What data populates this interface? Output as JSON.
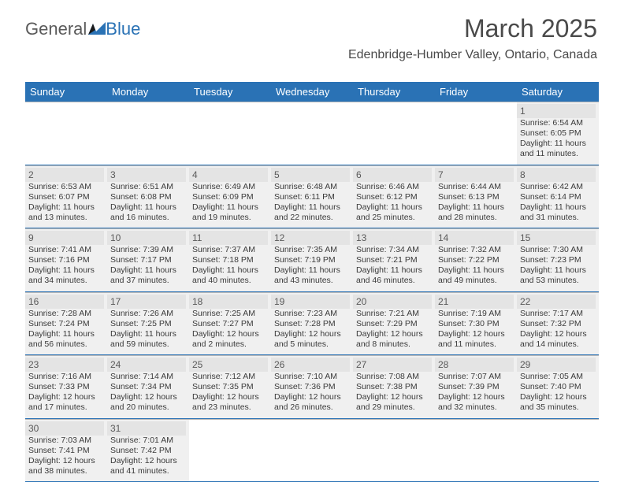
{
  "logo": {
    "part1": "General",
    "part2": "Blue"
  },
  "title": "March 2025",
  "location": "Edenbridge-Humber Valley, Ontario, Canada",
  "colors": {
    "header_bg": "#2a72b5",
    "header_text": "#ffffff",
    "daynum_bg": "#e4e4e4",
    "cell_bg": "#f0f0f0",
    "row_border": "#2a72b5",
    "cell_border": "#b8b8b8",
    "title_color": "#4a4a4a",
    "logo_gray": "#5a5a5a",
    "logo_blue": "#2a72b5"
  },
  "font": {
    "family": "Arial",
    "title_size": 32,
    "location_size": 16,
    "header_size": 13,
    "daynum_size": 12,
    "info_size": 10.5
  },
  "days_of_week": [
    "Sunday",
    "Monday",
    "Tuesday",
    "Wednesday",
    "Thursday",
    "Friday",
    "Saturday"
  ],
  "weeks": [
    [
      {
        "n": "",
        "sr": "",
        "ss": "",
        "dl": ""
      },
      {
        "n": "",
        "sr": "",
        "ss": "",
        "dl": ""
      },
      {
        "n": "",
        "sr": "",
        "ss": "",
        "dl": ""
      },
      {
        "n": "",
        "sr": "",
        "ss": "",
        "dl": ""
      },
      {
        "n": "",
        "sr": "",
        "ss": "",
        "dl": ""
      },
      {
        "n": "",
        "sr": "",
        "ss": "",
        "dl": ""
      },
      {
        "n": "1",
        "sr": "Sunrise: 6:54 AM",
        "ss": "Sunset: 6:05 PM",
        "dl": "Daylight: 11 hours and 11 minutes."
      }
    ],
    [
      {
        "n": "2",
        "sr": "Sunrise: 6:53 AM",
        "ss": "Sunset: 6:07 PM",
        "dl": "Daylight: 11 hours and 13 minutes."
      },
      {
        "n": "3",
        "sr": "Sunrise: 6:51 AM",
        "ss": "Sunset: 6:08 PM",
        "dl": "Daylight: 11 hours and 16 minutes."
      },
      {
        "n": "4",
        "sr": "Sunrise: 6:49 AM",
        "ss": "Sunset: 6:09 PM",
        "dl": "Daylight: 11 hours and 19 minutes."
      },
      {
        "n": "5",
        "sr": "Sunrise: 6:48 AM",
        "ss": "Sunset: 6:11 PM",
        "dl": "Daylight: 11 hours and 22 minutes."
      },
      {
        "n": "6",
        "sr": "Sunrise: 6:46 AM",
        "ss": "Sunset: 6:12 PM",
        "dl": "Daylight: 11 hours and 25 minutes."
      },
      {
        "n": "7",
        "sr": "Sunrise: 6:44 AM",
        "ss": "Sunset: 6:13 PM",
        "dl": "Daylight: 11 hours and 28 minutes."
      },
      {
        "n": "8",
        "sr": "Sunrise: 6:42 AM",
        "ss": "Sunset: 6:14 PM",
        "dl": "Daylight: 11 hours and 31 minutes."
      }
    ],
    [
      {
        "n": "9",
        "sr": "Sunrise: 7:41 AM",
        "ss": "Sunset: 7:16 PM",
        "dl": "Daylight: 11 hours and 34 minutes."
      },
      {
        "n": "10",
        "sr": "Sunrise: 7:39 AM",
        "ss": "Sunset: 7:17 PM",
        "dl": "Daylight: 11 hours and 37 minutes."
      },
      {
        "n": "11",
        "sr": "Sunrise: 7:37 AM",
        "ss": "Sunset: 7:18 PM",
        "dl": "Daylight: 11 hours and 40 minutes."
      },
      {
        "n": "12",
        "sr": "Sunrise: 7:35 AM",
        "ss": "Sunset: 7:19 PM",
        "dl": "Daylight: 11 hours and 43 minutes."
      },
      {
        "n": "13",
        "sr": "Sunrise: 7:34 AM",
        "ss": "Sunset: 7:21 PM",
        "dl": "Daylight: 11 hours and 46 minutes."
      },
      {
        "n": "14",
        "sr": "Sunrise: 7:32 AM",
        "ss": "Sunset: 7:22 PM",
        "dl": "Daylight: 11 hours and 49 minutes."
      },
      {
        "n": "15",
        "sr": "Sunrise: 7:30 AM",
        "ss": "Sunset: 7:23 PM",
        "dl": "Daylight: 11 hours and 53 minutes."
      }
    ],
    [
      {
        "n": "16",
        "sr": "Sunrise: 7:28 AM",
        "ss": "Sunset: 7:24 PM",
        "dl": "Daylight: 11 hours and 56 minutes."
      },
      {
        "n": "17",
        "sr": "Sunrise: 7:26 AM",
        "ss": "Sunset: 7:25 PM",
        "dl": "Daylight: 11 hours and 59 minutes."
      },
      {
        "n": "18",
        "sr": "Sunrise: 7:25 AM",
        "ss": "Sunset: 7:27 PM",
        "dl": "Daylight: 12 hours and 2 minutes."
      },
      {
        "n": "19",
        "sr": "Sunrise: 7:23 AM",
        "ss": "Sunset: 7:28 PM",
        "dl": "Daylight: 12 hours and 5 minutes."
      },
      {
        "n": "20",
        "sr": "Sunrise: 7:21 AM",
        "ss": "Sunset: 7:29 PM",
        "dl": "Daylight: 12 hours and 8 minutes."
      },
      {
        "n": "21",
        "sr": "Sunrise: 7:19 AM",
        "ss": "Sunset: 7:30 PM",
        "dl": "Daylight: 12 hours and 11 minutes."
      },
      {
        "n": "22",
        "sr": "Sunrise: 7:17 AM",
        "ss": "Sunset: 7:32 PM",
        "dl": "Daylight: 12 hours and 14 minutes."
      }
    ],
    [
      {
        "n": "23",
        "sr": "Sunrise: 7:16 AM",
        "ss": "Sunset: 7:33 PM",
        "dl": "Daylight: 12 hours and 17 minutes."
      },
      {
        "n": "24",
        "sr": "Sunrise: 7:14 AM",
        "ss": "Sunset: 7:34 PM",
        "dl": "Daylight: 12 hours and 20 minutes."
      },
      {
        "n": "25",
        "sr": "Sunrise: 7:12 AM",
        "ss": "Sunset: 7:35 PM",
        "dl": "Daylight: 12 hours and 23 minutes."
      },
      {
        "n": "26",
        "sr": "Sunrise: 7:10 AM",
        "ss": "Sunset: 7:36 PM",
        "dl": "Daylight: 12 hours and 26 minutes."
      },
      {
        "n": "27",
        "sr": "Sunrise: 7:08 AM",
        "ss": "Sunset: 7:38 PM",
        "dl": "Daylight: 12 hours and 29 minutes."
      },
      {
        "n": "28",
        "sr": "Sunrise: 7:07 AM",
        "ss": "Sunset: 7:39 PM",
        "dl": "Daylight: 12 hours and 32 minutes."
      },
      {
        "n": "29",
        "sr": "Sunrise: 7:05 AM",
        "ss": "Sunset: 7:40 PM",
        "dl": "Daylight: 12 hours and 35 minutes."
      }
    ],
    [
      {
        "n": "30",
        "sr": "Sunrise: 7:03 AM",
        "ss": "Sunset: 7:41 PM",
        "dl": "Daylight: 12 hours and 38 minutes."
      },
      {
        "n": "31",
        "sr": "Sunrise: 7:01 AM",
        "ss": "Sunset: 7:42 PM",
        "dl": "Daylight: 12 hours and 41 minutes."
      },
      {
        "n": "",
        "sr": "",
        "ss": "",
        "dl": ""
      },
      {
        "n": "",
        "sr": "",
        "ss": "",
        "dl": ""
      },
      {
        "n": "",
        "sr": "",
        "ss": "",
        "dl": ""
      },
      {
        "n": "",
        "sr": "",
        "ss": "",
        "dl": ""
      },
      {
        "n": "",
        "sr": "",
        "ss": "",
        "dl": ""
      }
    ]
  ]
}
